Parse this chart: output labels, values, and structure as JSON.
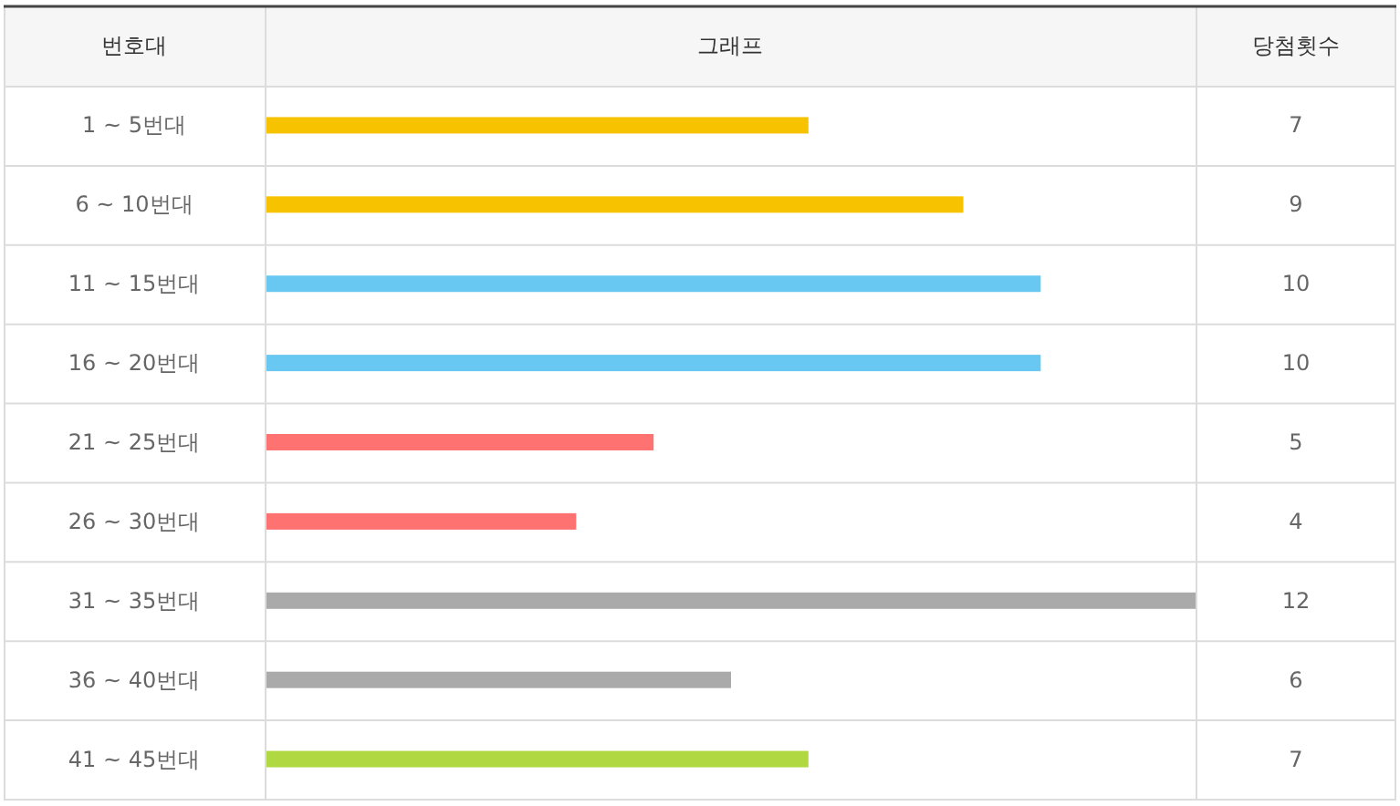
{
  "chart_data": {
    "type": "bar",
    "orientation": "horizontal",
    "ylabel": "번호대",
    "xlabel": "그래프",
    "annotations": [
      "당첨횟수"
    ],
    "categories": [
      "1 ~ 5번대",
      "6 ~ 10번대",
      "11 ~ 15번대",
      "16 ~ 20번대",
      "21 ~ 25번대",
      "26 ~ 30번대",
      "31 ~ 35번대",
      "36 ~ 40번대",
      "41 ~ 45번대"
    ],
    "values": [
      7,
      9,
      10,
      10,
      5,
      4,
      12,
      6,
      7
    ],
    "colors": [
      "#f7c200",
      "#f7c200",
      "#69c8f2",
      "#69c8f2",
      "#ff7272",
      "#ff7272",
      "#aaaaaa",
      "#aaaaaa",
      "#b0d840"
    ],
    "xlim": [
      0,
      12
    ],
    "tick_labels": "y",
    "data_labels": true
  }
}
